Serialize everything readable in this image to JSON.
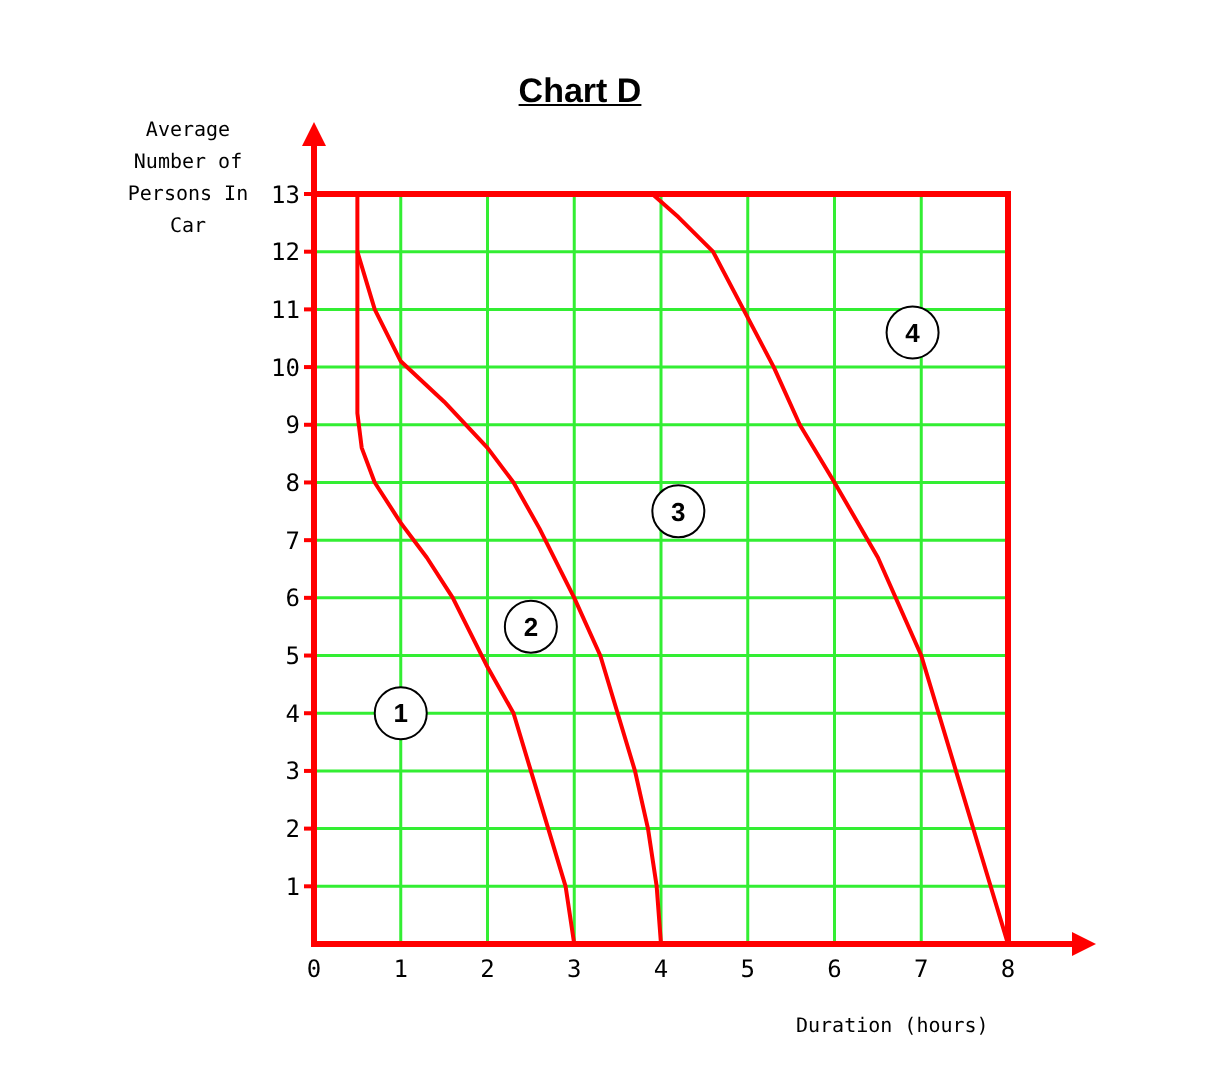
{
  "chart_data": {
    "type": "line",
    "title": "Chart D",
    "xlabel": "Duration (hours)",
    "ylabel": "Average Number of Persons In Car",
    "xlim": [
      0,
      8
    ],
    "ylim": [
      0,
      13
    ],
    "xticks": [
      0,
      1,
      2,
      3,
      4,
      5,
      6,
      7,
      8
    ],
    "yticks": [
      1,
      2,
      3,
      4,
      5,
      6,
      7,
      8,
      9,
      10,
      11,
      12,
      13
    ],
    "grid": true,
    "marker": "none",
    "line_style": "solid",
    "series": [
      {
        "color": "#ff0000",
        "x": [
          0.5,
          0.5,
          0.55,
          0.7,
          1,
          1.3,
          1.6,
          2,
          2.3,
          2.5,
          2.7,
          2.9,
          3
        ],
        "values": [
          13,
          9.2,
          8.6,
          8,
          7.3,
          6.7,
          6,
          4.8,
          4,
          3,
          2,
          1,
          0
        ]
      },
      {
        "color": "#ff0000",
        "x": [
          0.5,
          0.7,
          1,
          1.5,
          2,
          2.3,
          2.6,
          3,
          3.3,
          3.5,
          3.7,
          3.85,
          3.95,
          4
        ],
        "values": [
          12,
          11,
          10.1,
          9.4,
          8.6,
          8,
          7.2,
          6,
          5,
          4,
          3,
          2,
          1,
          0
        ]
      },
      {
        "color": "#ff0000",
        "x": [
          3.9,
          4.2,
          4.6,
          4.95,
          5.3,
          5.6,
          6,
          6.5,
          7,
          7.4,
          7.7,
          8
        ],
        "values": [
          13,
          12.6,
          12,
          11,
          10,
          9,
          8,
          6.7,
          5,
          3,
          1.5,
          0
        ]
      }
    ],
    "annotations": [
      {
        "text": "1",
        "x": 1,
        "y": 4
      },
      {
        "text": "2",
        "x": 2.5,
        "y": 5.5
      },
      {
        "text": "3",
        "x": 4.2,
        "y": 7.5
      },
      {
        "text": "4",
        "x": 6.9,
        "y": 10.6
      }
    ]
  }
}
